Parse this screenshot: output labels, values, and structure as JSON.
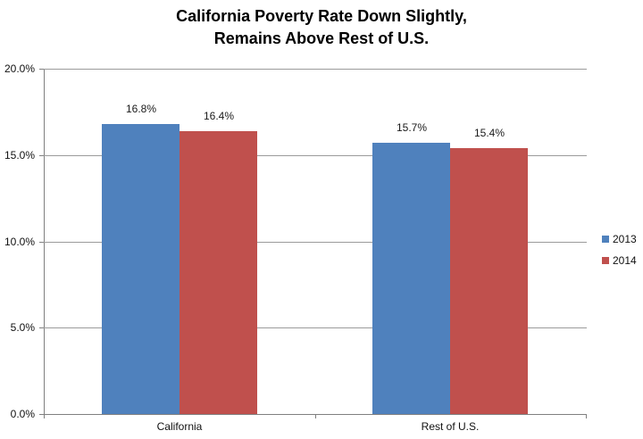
{
  "title": {
    "line1": "California Poverty Rate Down Slightly,",
    "line2": "Remains Above Rest of U.S."
  },
  "chart_data": {
    "type": "bar",
    "title": "California Poverty Rate Down Slightly, Remains Above Rest of U.S.",
    "categories": [
      "California",
      "Rest of U.S."
    ],
    "series": [
      {
        "name": "2013",
        "color": "#4F81BD",
        "values": [
          16.8,
          15.7
        ],
        "data_labels": [
          "16.8%",
          "15.7%"
        ]
      },
      {
        "name": "2014",
        "color": "#C0504D",
        "values": [
          16.4,
          15.4
        ],
        "data_labels": [
          "16.4%",
          "15.4%"
        ]
      }
    ],
    "xlabel": "",
    "ylabel": "",
    "ylim": [
      0,
      20
    ],
    "yticks": [
      {
        "value": 0,
        "label": "0.0%"
      },
      {
        "value": 5,
        "label": "5.0%"
      },
      {
        "value": 10,
        "label": "10.0%"
      },
      {
        "value": 15,
        "label": "15.0%"
      },
      {
        "value": 20,
        "label": "20.0%"
      }
    ],
    "grid": true,
    "legend_position": "right"
  },
  "colors": {
    "series_2013": "#4F81BD",
    "series_2014": "#C0504D",
    "gridline": "#9B9B9B",
    "axis": "#808080",
    "text": "#111111",
    "background": "#FFFFFF"
  }
}
